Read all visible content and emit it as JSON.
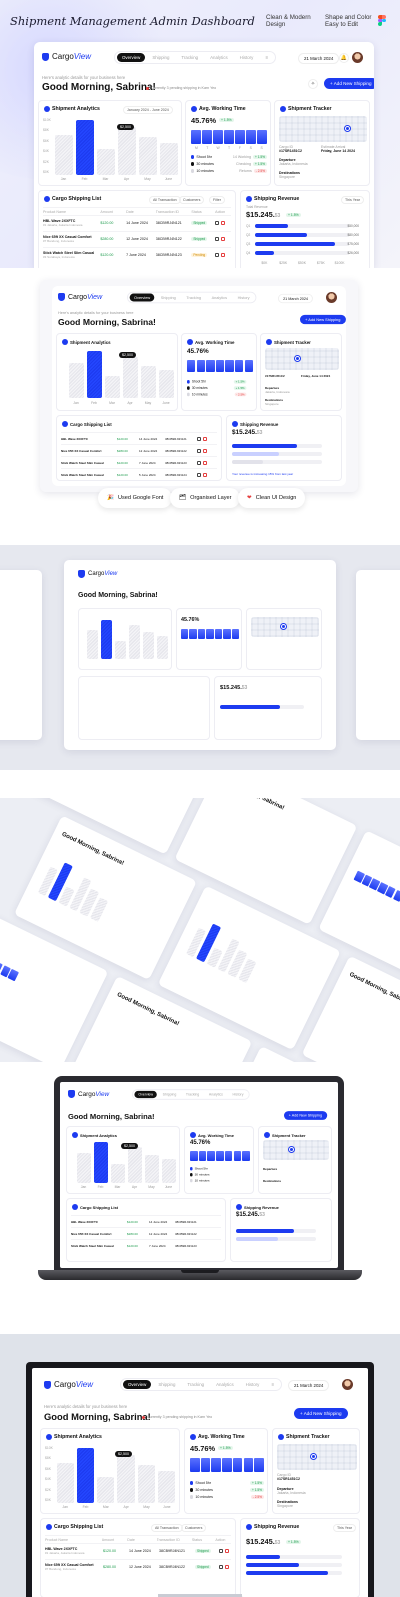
{
  "header": {
    "title": "Shipment Management Admin Dashboard",
    "note1": [
      "Clean & Modern",
      "Design"
    ],
    "note2": [
      "Shape and Color",
      "Easy to Edit"
    ]
  },
  "app": {
    "logo": {
      "a": "Cargo",
      "b": "View"
    },
    "tabs": [
      "Overview",
      "Shipping",
      "Tracking",
      "Analytics",
      "History"
    ],
    "date": "21 March 2024",
    "greeting_sub": "Here's analytic details for your business here",
    "greeting": "Good Morning, Sabrina!",
    "status": "Currently 3 pending shipping in Karn Yeo",
    "add_button": "+ Add New Shipping"
  },
  "analytics": {
    "title": "Shipment Analytics",
    "range": "January 2024 - June 2024",
    "tooltip": "$2,500",
    "yticks": [
      "$10K",
      "$8K",
      "$6K",
      "$4K",
      "$2K",
      "$0K"
    ]
  },
  "chart_data": {
    "type": "bar",
    "categories": [
      "Jan",
      "Feb",
      "Mar",
      "Apr",
      "May",
      "June"
    ],
    "values": [
      7.2,
      9.8,
      4.6,
      8.5,
      6.7,
      5.8
    ],
    "highlight": "Feb",
    "ylim": [
      0,
      10
    ]
  },
  "working": {
    "title": "Avg. Working Time",
    "value": "45.76%",
    "gain": "+ 1.5%",
    "days": [
      "M",
      "T",
      "W",
      "T",
      "F",
      "S",
      "S"
    ],
    "legend": [
      {
        "label": "Shoot 5hr",
        "count": "14 Working",
        "chip": "+ 1.5%",
        "color": "#1d3bf0",
        "up": true
      },
      {
        "label": "30 minutes",
        "count": "Checking",
        "chip": "+ 1.5%",
        "color": "#111111",
        "up": true
      },
      {
        "label": "10 minutes",
        "count": "Returns",
        "chip": "- 2.5%",
        "color": "#d9d9e0",
        "up": false
      }
    ]
  },
  "tracker": {
    "title": "Shipment Tracker",
    "id_label": "Cargo ID",
    "id": "#17SR1451C2",
    "eta_label": "Estimate Arrival",
    "eta": "Friday, June 14 2024",
    "departure": "Departure",
    "departure_sub": "Jakarta, Indonesia",
    "destination": "Destinations",
    "destination_sub": "Singapore"
  },
  "list": {
    "title": "Cargo Shipping List",
    "filter1": "All Transaction",
    "filter2": "Customers",
    "filter3": "Filter",
    "headers": [
      "Product Name",
      "Amount",
      "Date",
      "Transaction ID",
      "Status",
      "Action"
    ],
    "rows": [
      {
        "name": "HBL Wave 2XXFTC",
        "sub": "#1 Jakarta, Jakarta Indonesia",
        "amount": "$120.00",
        "date": "14 June 2024",
        "tid": "38CB9RJ4N121",
        "status": "Shipped"
      },
      {
        "name": "Nice 65ft XX Casual Comfort",
        "sub": "#7 Bandung, Indonesia",
        "amount": "$280.00",
        "date": "12 June 2024",
        "tid": "38CB9RJ4N122",
        "status": "Shipped"
      },
      {
        "name": "Stick Watch Steel Slim Casual",
        "sub": "#3 Surabaya, Indonesia",
        "amount": "$120.00",
        "date": "7 June 2024",
        "tid": "38CB9RJ4N123",
        "status": "Pending"
      },
      {
        "name": "Stick Watch Steel Slim Casual",
        "sub": "#3 Surabaya, Indonesia",
        "amount": "$120.00",
        "date": "5 June 2024",
        "tid": "38CB9RJ4N124",
        "status": "Cancel"
      }
    ]
  },
  "revenue": {
    "title": "Shipping Revenue",
    "range": "This Year",
    "label": "Total Revenue",
    "value": "$15.245.",
    "cents": "53",
    "gain": "+ 1.5%",
    "rows": [
      {
        "label": "Q1",
        "value": "$50,000",
        "fill": 0.35
      },
      {
        "label": "Q2",
        "value": "$80,000",
        "fill": 0.55
      },
      {
        "label": "Q3",
        "value": "$75,000",
        "fill": 0.85
      },
      {
        "label": "Q4",
        "value": "$26,000",
        "fill": 0.2
      }
    ],
    "axis": [
      "$0K",
      "$25K",
      "$50K",
      "$75K",
      "$100K"
    ],
    "footer_link": "Your revenue is increasing 15% from last year",
    "footer_btn": "View Detail"
  },
  "features": [
    {
      "icon": "🎉",
      "label": "Used Google Font"
    },
    {
      "icon": "🗂",
      "label": "Organised Layer"
    },
    {
      "icon": "❤",
      "label": "Clean UI Design"
    }
  ],
  "colors": {
    "accent": "#1d3bf0",
    "bg": "#f0f1fb",
    "dark": "#111111",
    "green": "#1a9a4a",
    "red": "#e53e3e"
  }
}
